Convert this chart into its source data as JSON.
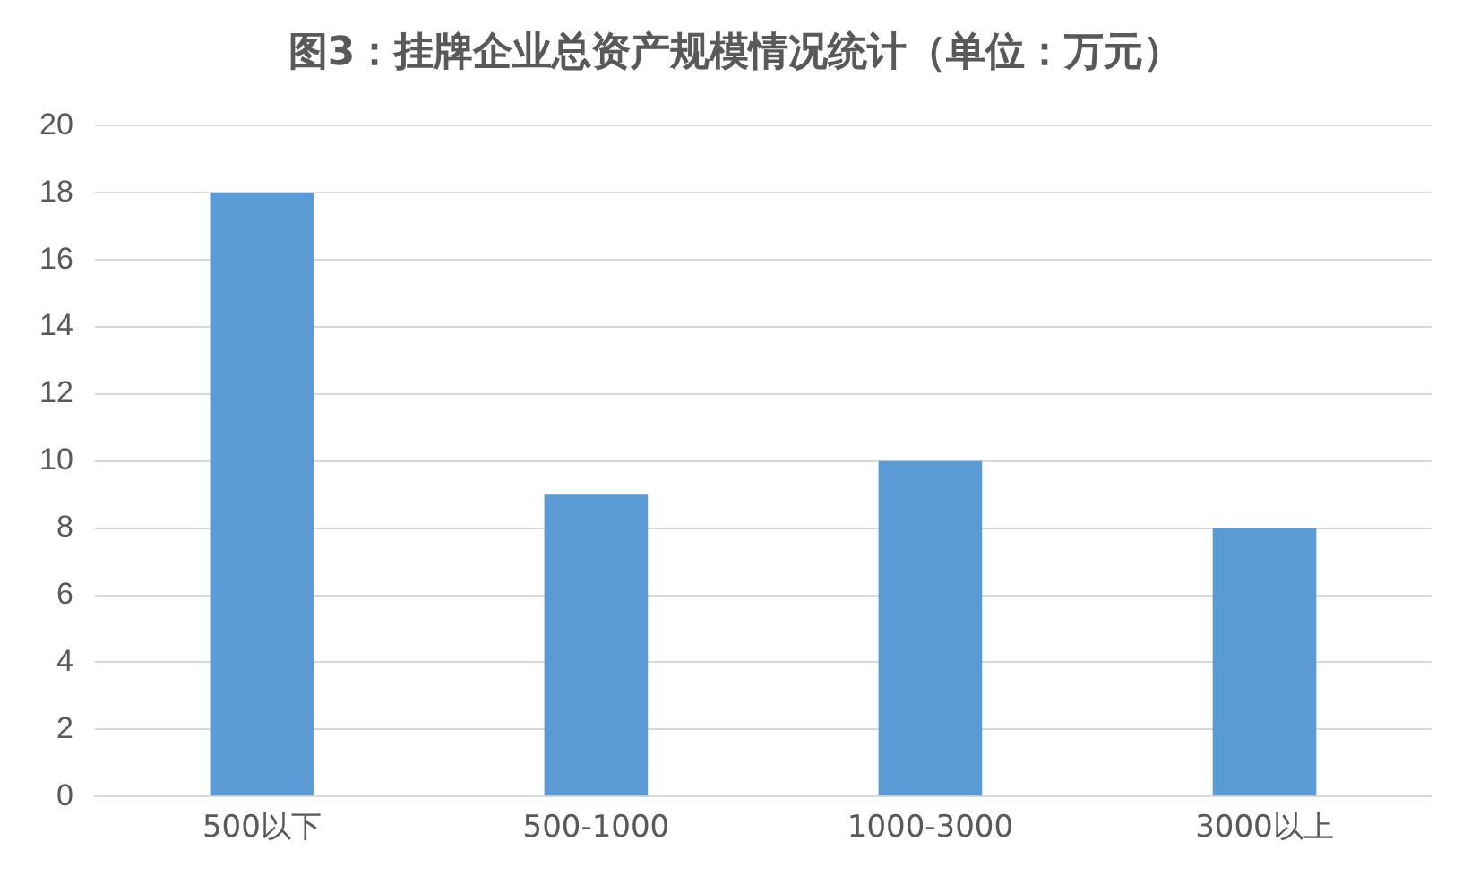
{
  "chart_data": {
    "type": "bar",
    "title": "图3：挂牌企业总资产规模情况统计（单位：万元）",
    "categories": [
      "500以下",
      "500-1000",
      "1000-3000",
      "3000以上"
    ],
    "values": [
      18,
      9,
      10,
      8
    ],
    "color": "#5b9bd5",
    "ylim": [
      0,
      20
    ],
    "yticks": [
      0,
      2,
      4,
      6,
      8,
      10,
      12,
      14,
      16,
      18,
      20
    ],
    "grid": "y"
  }
}
